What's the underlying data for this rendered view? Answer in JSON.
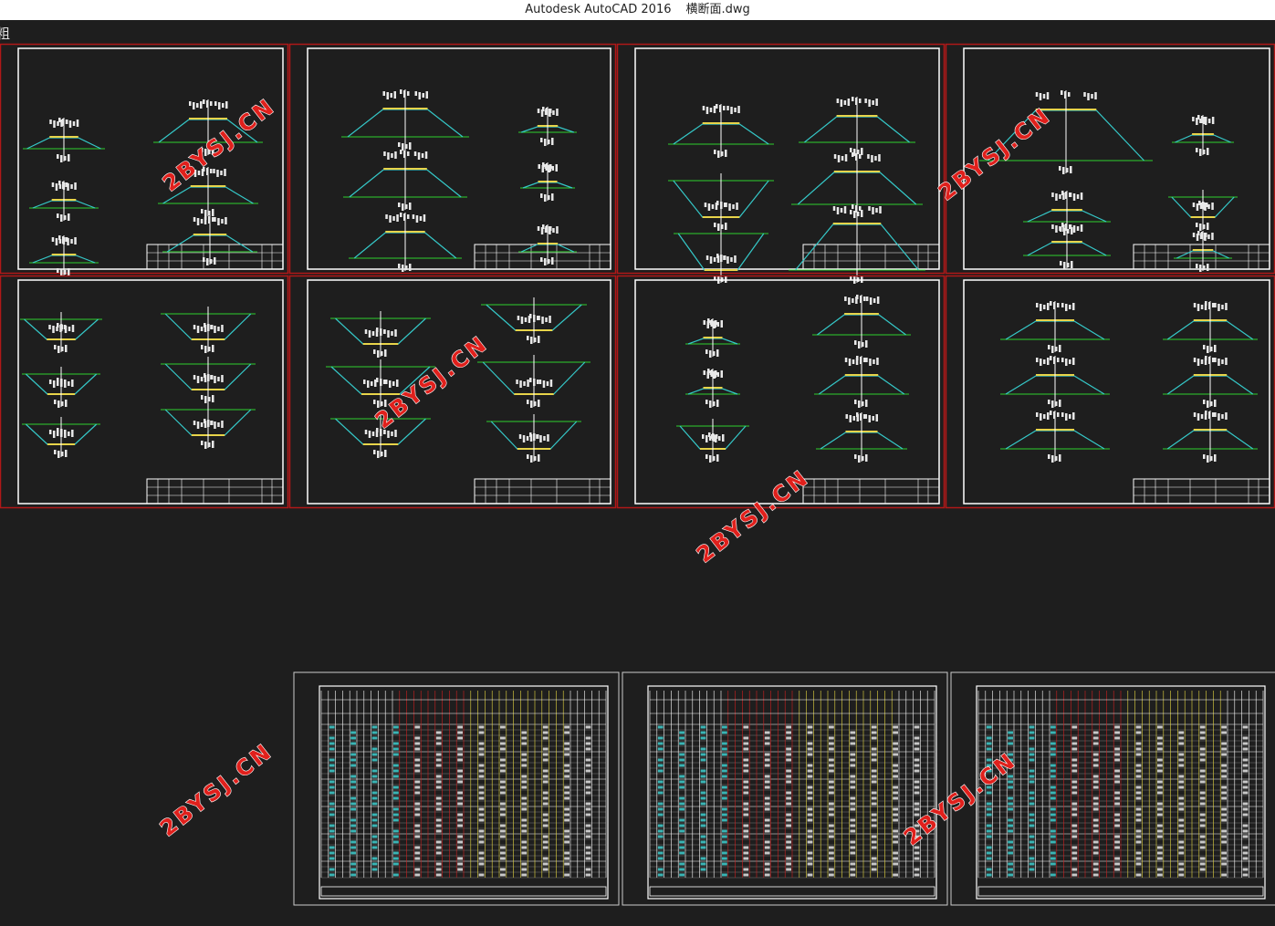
{
  "window": {
    "title": "Autodesk AutoCAD 2016",
    "file": "横断面.dwg"
  },
  "toolbar": {
    "label": "粗"
  },
  "watermarks": [
    "2BYSJ.CN",
    "2BYSJ.CN",
    "2BYSJ.CN",
    "2BYSJ.CN",
    "2BYSJ.CN",
    "2BYSJ.CN"
  ]
}
